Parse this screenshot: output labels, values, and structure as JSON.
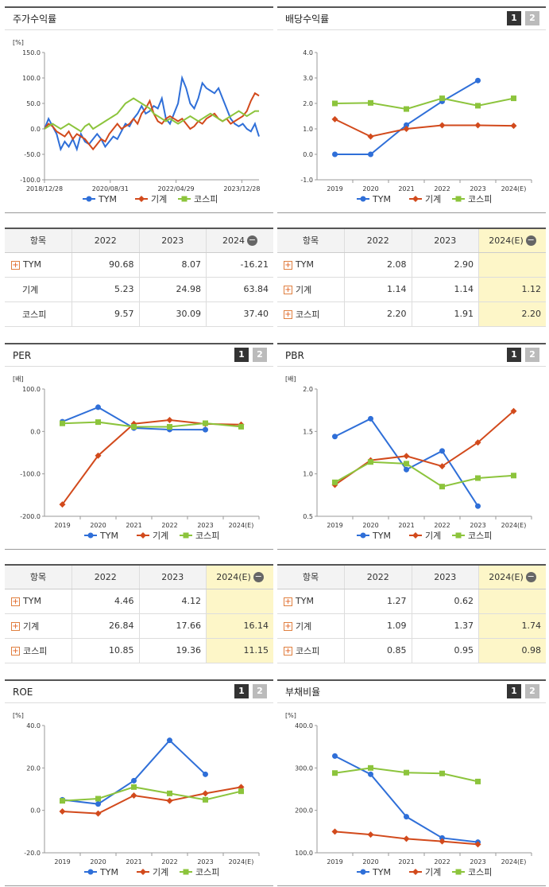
{
  "panels": [
    {
      "title": "주가수익률",
      "tabs": [],
      "unit": "[%]"
    },
    {
      "title": "배당수익률",
      "tabs": [
        "1",
        "2"
      ],
      "unit": ""
    },
    {
      "title": "PER",
      "tabs": [
        "1",
        "2"
      ],
      "unit": "[배]"
    },
    {
      "title": "PBR",
      "tabs": [
        "1",
        "2"
      ],
      "unit": "[배]"
    },
    {
      "title": "ROE",
      "tabs": [
        "1",
        "2"
      ],
      "unit": "[%]"
    },
    {
      "title": "부채비율",
      "tabs": [
        "1",
        "2"
      ],
      "unit": "[%]"
    }
  ],
  "legend": [
    "TYM",
    "기계",
    "코스피"
  ],
  "colors": {
    "TYM": "#2f6fd8",
    "기계": "#d24a1c",
    "코스피": "#8cc43c"
  },
  "tables": [
    {
      "headers": [
        "항목",
        "2022",
        "2023",
        "2024"
      ],
      "rows": [
        [
          "TYM",
          "90.68",
          "8.07",
          "-16.21"
        ],
        [
          "기계",
          "5.23",
          "24.98",
          "63.84"
        ],
        [
          "코스피",
          "9.57",
          "30.09",
          "37.40"
        ]
      ],
      "plus_rows": [
        true,
        false,
        false
      ],
      "highlight_last": false
    },
    {
      "headers": [
        "항목",
        "2022",
        "2023",
        "2024(E)"
      ],
      "rows": [
        [
          "TYM",
          "2.08",
          "2.90",
          ""
        ],
        [
          "기계",
          "1.14",
          "1.14",
          "1.12"
        ],
        [
          "코스피",
          "2.20",
          "1.91",
          "2.20"
        ]
      ],
      "plus_rows": [
        true,
        true,
        true
      ],
      "highlight_last": true
    },
    {
      "headers": [
        "항목",
        "2022",
        "2023",
        "2024(E)"
      ],
      "rows": [
        [
          "TYM",
          "4.46",
          "4.12",
          ""
        ],
        [
          "기계",
          "26.84",
          "17.66",
          "16.14"
        ],
        [
          "코스피",
          "10.85",
          "19.36",
          "11.15"
        ]
      ],
      "plus_rows": [
        true,
        true,
        true
      ],
      "highlight_last": true
    },
    {
      "headers": [
        "항목",
        "2022",
        "2023",
        "2024(E)"
      ],
      "rows": [
        [
          "TYM",
          "1.27",
          "0.62",
          ""
        ],
        [
          "기계",
          "1.09",
          "1.37",
          "1.74"
        ],
        [
          "코스피",
          "0.85",
          "0.95",
          "0.98"
        ]
      ],
      "plus_rows": [
        true,
        true,
        true
      ],
      "highlight_last": true
    }
  ],
  "chart_data": [
    {
      "type": "line",
      "title": "주가수익률",
      "ylabel": "[%]",
      "ylim": [
        -100,
        150
      ],
      "yticks": [
        "150.0",
        "100.0",
        "50.0",
        "0.0",
        "-50.0",
        "-100.0"
      ],
      "xticks": [
        "2018/12/28",
        "2020/08/31",
        "2022/04/29",
        "2023/12/28"
      ],
      "series": [
        {
          "name": "TYM",
          "values": [
            0,
            20,
            5,
            -10,
            -40,
            -25,
            -35,
            -20,
            -40,
            -10,
            -25,
            -30,
            -20,
            -10,
            -20,
            -35,
            -25,
            -15,
            -20,
            -5,
            10,
            5,
            20,
            30,
            45,
            30,
            35,
            45,
            40,
            60,
            20,
            10,
            30,
            50,
            100,
            80,
            50,
            40,
            60,
            90,
            80,
            75,
            70,
            80,
            60,
            40,
            20,
            10,
            5,
            10,
            0,
            -5,
            10,
            -15
          ]
        },
        {
          "name": "기계",
          "values": [
            0,
            10,
            5,
            -5,
            -10,
            -15,
            -5,
            -20,
            -10,
            -15,
            -20,
            -30,
            -40,
            -30,
            -20,
            -25,
            -10,
            0,
            10,
            0,
            5,
            10,
            20,
            10,
            30,
            40,
            55,
            30,
            15,
            10,
            20,
            25,
            20,
            15,
            20,
            10,
            0,
            5,
            15,
            10,
            20,
            25,
            30,
            20,
            15,
            20,
            10,
            15,
            20,
            25,
            35,
            55,
            70,
            65
          ]
        },
        {
          "name": "코스피",
          "values": [
            0,
            5,
            10,
            5,
            0,
            5,
            10,
            5,
            0,
            -5,
            5,
            10,
            0,
            5,
            10,
            15,
            20,
            25,
            30,
            40,
            50,
            55,
            60,
            55,
            50,
            45,
            40,
            30,
            25,
            20,
            15,
            20,
            15,
            10,
            15,
            20,
            25,
            20,
            15,
            20,
            25,
            30,
            25,
            20,
            15,
            20,
            25,
            30,
            35,
            30,
            25,
            30,
            35,
            35
          ]
        }
      ]
    },
    {
      "type": "line",
      "title": "배당수익률",
      "ylim": [
        -1,
        4
      ],
      "yticks": [
        "4.0",
        "3.0",
        "2.0",
        "1.0",
        "0.0",
        "-1.0"
      ],
      "categories": [
        "2019",
        "2020",
        "2021",
        "2022",
        "2023",
        "2024(E)"
      ],
      "series": [
        {
          "name": "TYM",
          "values": [
            0,
            0,
            1.15,
            2.08,
            2.9,
            null
          ]
        },
        {
          "name": "기계",
          "values": [
            1.38,
            0.7,
            1.0,
            1.14,
            1.14,
            1.12
          ]
        },
        {
          "name": "코스피",
          "values": [
            2.0,
            2.02,
            1.78,
            2.2,
            1.91,
            2.2
          ]
        }
      ]
    },
    {
      "type": "line",
      "title": "PER",
      "ylabel": "[배]",
      "ylim": [
        -200,
        100
      ],
      "yticks": [
        "100.0",
        "0.0",
        "-100.0",
        "-200.0"
      ],
      "categories": [
        "2019",
        "2020",
        "2021",
        "2022",
        "2023",
        "2024(E)"
      ],
      "series": [
        {
          "name": "TYM",
          "values": [
            23,
            57,
            8,
            4.46,
            4.12,
            null
          ]
        },
        {
          "name": "기계",
          "values": [
            -172,
            -57,
            18,
            26.84,
            17.66,
            16.14
          ]
        },
        {
          "name": "코스피",
          "values": [
            19,
            22,
            11,
            10.85,
            19.36,
            11.15
          ]
        }
      ]
    },
    {
      "type": "line",
      "title": "PBR",
      "ylabel": "[배]",
      "ylim": [
        0.5,
        2.0
      ],
      "yticks": [
        "2.0",
        "1.5",
        "1.0",
        "0.5"
      ],
      "categories": [
        "2019",
        "2020",
        "2021",
        "2022",
        "2023",
        "2024(E)"
      ],
      "series": [
        {
          "name": "TYM",
          "values": [
            1.44,
            1.65,
            1.05,
            1.27,
            0.62,
            null
          ]
        },
        {
          "name": "기계",
          "values": [
            0.87,
            1.16,
            1.21,
            1.09,
            1.37,
            1.74
          ]
        },
        {
          "name": "코스피",
          "values": [
            0.9,
            1.14,
            1.12,
            0.85,
            0.95,
            0.98
          ]
        }
      ]
    },
    {
      "type": "line",
      "title": "ROE",
      "ylabel": "[%]",
      "ylim": [
        -20,
        40
      ],
      "yticks": [
        "40.0",
        "20.0",
        "0.0",
        "-20.0"
      ],
      "categories": [
        "2019",
        "2020",
        "2021",
        "2022",
        "2023",
        "2024(E)"
      ],
      "series": [
        {
          "name": "TYM",
          "values": [
            5,
            3,
            14,
            33,
            17,
            null
          ]
        },
        {
          "name": "기계",
          "values": [
            -0.5,
            -1.5,
            7,
            4.5,
            8,
            11
          ]
        },
        {
          "name": "코스피",
          "values": [
            4.5,
            5.5,
            11,
            8,
            5,
            9
          ]
        }
      ]
    },
    {
      "type": "line",
      "title": "부채비율",
      "ylabel": "[%]",
      "ylim": [
        100,
        400
      ],
      "yticks": [
        "400.0",
        "300.0",
        "200.0",
        "100.0"
      ],
      "categories": [
        "2019",
        "2020",
        "2021",
        "2022",
        "2023",
        "2024(E)"
      ],
      "series": [
        {
          "name": "TYM",
          "values": [
            328,
            285,
            185,
            135,
            125,
            null
          ]
        },
        {
          "name": "기계",
          "values": [
            150,
            143,
            133,
            127,
            120,
            null
          ]
        },
        {
          "name": "코스피",
          "values": [
            288,
            300,
            289,
            287,
            268,
            null
          ]
        }
      ]
    }
  ]
}
